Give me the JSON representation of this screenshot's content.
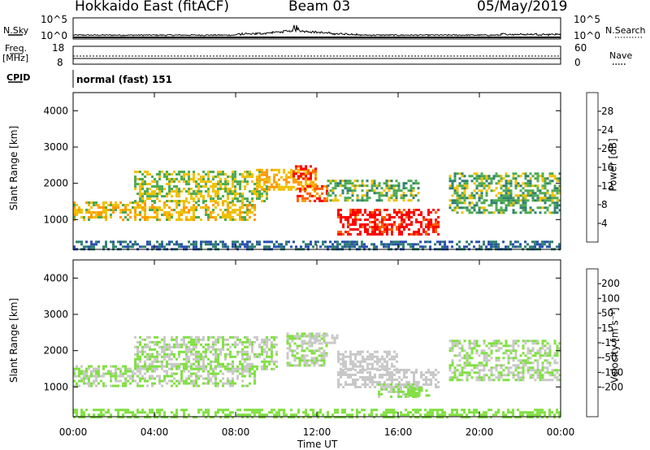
{
  "header": {
    "station": "Hokkaido East (fitACF)",
    "beam": "Beam 03",
    "date": "05/May/2019"
  },
  "top_panels": {
    "nsky_label": "N.Sky",
    "nsky_ticks": [
      "10^5",
      "10^0"
    ],
    "nsearch_label": "N.Search",
    "nsearch_ticks": [
      "10^5",
      "10^0"
    ],
    "freq_label": "Freq.",
    "freq_unit": "[MHz]",
    "freq_ticks": [
      "18",
      "8"
    ],
    "nave_label": "Nave",
    "nave_ticks": [
      "60",
      "0"
    ],
    "cpid_label": "CPID",
    "cpid_value": "normal (fast) 151"
  },
  "colors": {
    "power_scale": [
      "#0000ff",
      "#2a4fb0",
      "#2f7f6f",
      "#4caa50",
      "#f0c000",
      "#ff9a00",
      "#ff6000",
      "#ff0000"
    ],
    "velocity_scale": [
      "#0010ff",
      "#2a48b0",
      "#2f7f3f",
      "#4faf30",
      "#80e040",
      "#c8c8c8",
      "#f5d000",
      "#ff9a00",
      "#ff6000",
      "#ff0000"
    ]
  },
  "chart_data": [
    {
      "type": "heatmap",
      "title": "",
      "ylabel": "Slant Range [km]",
      "xlabel": "Time UT",
      "x_ticks": [
        "00:00",
        "04:00",
        "08:00",
        "12:00",
        "16:00",
        "20:00",
        "00:00"
      ],
      "y_ticks": [
        "1000",
        "2000",
        "3000",
        "4000"
      ],
      "ylim": [
        180,
        4500
      ],
      "xlim_hours": [
        0,
        24
      ],
      "colorbar": {
        "label": "Power [dB]",
        "ticks": [
          "4",
          "8",
          "12",
          "16",
          "20",
          "24",
          "28"
        ],
        "range": [
          0,
          32
        ]
      },
      "echo_bands": [
        {
          "t_start": 0,
          "t_end": 24,
          "range_low": 180,
          "range_high": 420,
          "value": 8
        },
        {
          "t_start": 0,
          "t_end": 9,
          "range_low": 1000,
          "range_high": 1500,
          "value": 18
        },
        {
          "t_start": 3,
          "t_end": 9.5,
          "range_low": 1500,
          "range_high": 2350,
          "value": 16
        },
        {
          "t_start": 9,
          "t_end": 12,
          "range_low": 1800,
          "range_high": 2400,
          "value": 20
        },
        {
          "t_start": 10.8,
          "t_end": 12,
          "range_low": 2100,
          "range_high": 2500,
          "value": 30
        },
        {
          "t_start": 11,
          "t_end": 12.5,
          "range_low": 1500,
          "range_high": 1950,
          "value": 26
        },
        {
          "t_start": 12.5,
          "t_end": 17,
          "range_low": 1500,
          "range_high": 2100,
          "value": 14
        },
        {
          "t_start": 13,
          "t_end": 18,
          "range_low": 600,
          "range_high": 1300,
          "value": 30
        },
        {
          "t_start": 18.5,
          "t_end": 24,
          "range_low": 1200,
          "range_high": 2300,
          "value": 14
        }
      ]
    },
    {
      "type": "heatmap",
      "title": "",
      "ylabel": "Slant Range [km]",
      "xlabel": "Time UT",
      "x_ticks": [
        "00:00",
        "04:00",
        "08:00",
        "12:00",
        "16:00",
        "20:00",
        "00:00"
      ],
      "y_ticks": [
        "1000",
        "2000",
        "3000",
        "4000"
      ],
      "ylim": [
        180,
        4500
      ],
      "xlim_hours": [
        0,
        24
      ],
      "colorbar": {
        "label": "Velocity [m s⁻¹]",
        "ticks": [
          "200",
          "100",
          "50",
          "15",
          "-15",
          "-50",
          "-100",
          "-200"
        ],
        "range": [
          -250,
          250
        ]
      },
      "echo_bands": [
        {
          "t_start": 0,
          "t_end": 24,
          "range_low": 180,
          "range_high": 400,
          "value": -30
        },
        {
          "t_start": 0,
          "t_end": 9,
          "range_low": 1000,
          "range_high": 1600,
          "value": 0
        },
        {
          "t_start": 3,
          "t_end": 10,
          "range_low": 1500,
          "range_high": 2400,
          "value": 0
        },
        {
          "t_start": 10.5,
          "t_end": 12.5,
          "range_low": 1600,
          "range_high": 2500,
          "value": 0
        },
        {
          "t_start": 11.5,
          "t_end": 13,
          "range_low": 2200,
          "range_high": 2450,
          "value": 30
        },
        {
          "t_start": 13,
          "t_end": 18,
          "range_low": 1000,
          "range_high": 1500,
          "value": 30
        },
        {
          "t_start": 13,
          "t_end": 16,
          "range_low": 1500,
          "range_high": 2000,
          "value": 30
        },
        {
          "t_start": 15,
          "t_end": 17,
          "range_low": 700,
          "range_high": 1100,
          "value": 0
        },
        {
          "t_start": 16.5,
          "t_end": 17.5,
          "range_low": 750,
          "range_high": 1000,
          "value": -30
        },
        {
          "t_start": 18.5,
          "t_end": 24,
          "range_low": 1200,
          "range_high": 2300,
          "value": 0
        }
      ]
    }
  ]
}
